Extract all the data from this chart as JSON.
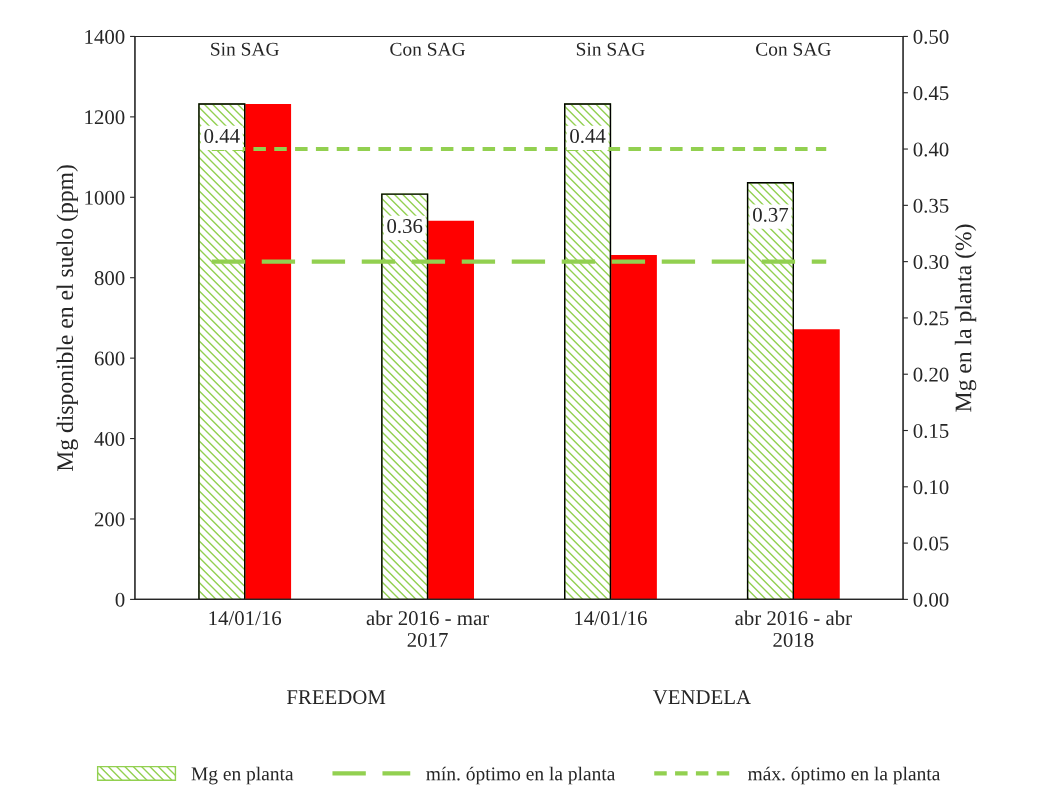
{
  "chart_data": {
    "type": "bar",
    "ylabel": "Mg disponible en el suelo (ppm)",
    "y2label": "Mg en la planta (%)",
    "categories": [
      "14/01/16",
      "abr 2016 - mar 2017",
      "14/01/16",
      "abr 2016 - abr 2018"
    ],
    "series": [
      {
        "name": "Mg en planta",
        "color": "#92d050",
        "axis": "y2",
        "values": [
          0.44,
          0.36,
          0.44,
          0.37
        ],
        "value_labels": [
          "0.44",
          "0.36",
          "0.44",
          "0.37"
        ]
      },
      {
        "color": "#ff0000",
        "values": [
          1230,
          940,
          855,
          670
        ]
      }
    ],
    "ylim": [
      0,
      1400
    ],
    "yticks": [
      0,
      200,
      400,
      600,
      800,
      1000,
      1200,
      1400
    ],
    "y2lim": [
      0,
      0.5
    ],
    "y2ticks": [
      {
        "value": 0,
        "label": "0.00"
      },
      {
        "value": 0.05,
        "label": "0.05"
      },
      {
        "value": 0.1,
        "label": "0.10"
      },
      {
        "value": 0.15,
        "label": "0.15"
      },
      {
        "value": 0.2,
        "label": "0.20"
      },
      {
        "value": 0.25,
        "label": "0.25"
      },
      {
        "value": 0.3,
        "label": "0.30"
      },
      {
        "value": 0.35,
        "label": "0.35"
      },
      {
        "value": 0.4,
        "label": "0.40"
      },
      {
        "value": 0.45,
        "label": "0.45"
      },
      {
        "value": 0.5,
        "label": "0.50"
      }
    ],
    "ref_lines": [
      {
        "axis": "y2",
        "value": 0.3,
        "label": "mín. óptimo en la planta",
        "color": "#92d050",
        "line_style": "dashed"
      },
      {
        "axis": "y2",
        "value": 0.4,
        "label": "máx. óptimo en la planta",
        "color": "#92d050",
        "line_style": "dotted"
      }
    ],
    "annotations": [
      "Sin SAG",
      "Con SAG",
      "Sin SAG",
      "Con SAG",
      "FREEDOM",
      "VENDELA"
    ],
    "grid": false,
    "legend": "bottom"
  }
}
